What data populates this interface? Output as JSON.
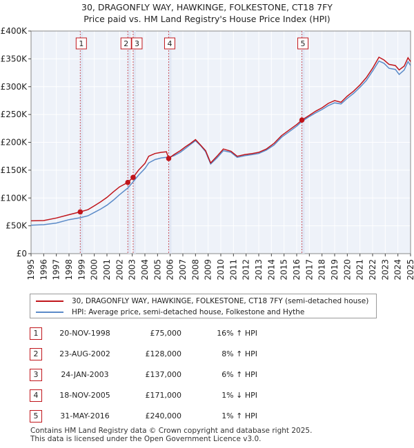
{
  "title_line1": "30, DRAGONFLY WAY, HAWKINGE, FOLKESTONE, CT18 7FY",
  "title_line2": "Price paid vs. HM Land Registry's House Price Index (HPI)",
  "chart_data": {
    "type": "line",
    "title": "30, DRAGONFLY WAY, HAWKINGE, FOLKESTONE, CT18 7FY — Price paid vs. HM Land Registry's House Price Index (HPI)",
    "xlabel": "",
    "ylabel": "",
    "xlim": [
      1995,
      2025
    ],
    "ylim": [
      0,
      400000
    ],
    "x_ticks": [
      "1995",
      "1996",
      "1997",
      "1998",
      "1999",
      "2000",
      "2001",
      "2002",
      "2003",
      "2004",
      "2005",
      "2006",
      "2007",
      "2008",
      "2009",
      "2010",
      "2011",
      "2012",
      "2013",
      "2014",
      "2015",
      "2016",
      "2017",
      "2018",
      "2019",
      "2020",
      "2021",
      "2022",
      "2023",
      "2024",
      "2025"
    ],
    "y_ticks": [
      {
        "value": 0,
        "label": "£0"
      },
      {
        "value": 50000,
        "label": "£50K"
      },
      {
        "value": 100000,
        "label": "£100K"
      },
      {
        "value": 150000,
        "label": "£150K"
      },
      {
        "value": 200000,
        "label": "£200K"
      },
      {
        "value": 250000,
        "label": "£250K"
      },
      {
        "value": 300000,
        "label": "£300K"
      },
      {
        "value": 350000,
        "label": "£350K"
      },
      {
        "value": 400000,
        "label": "£400K"
      }
    ],
    "grid": true,
    "series": [
      {
        "name": "30, DRAGONFLY WAY, HAWKINGE, FOLKESTONE, CT18 7FY (semi-detached house)",
        "color": "#c0141a",
        "points": [
          [
            1995.0,
            59000
          ],
          [
            1996.0,
            59500
          ],
          [
            1997.0,
            64000
          ],
          [
            1998.0,
            70000
          ],
          [
            1998.89,
            75000
          ],
          [
            1999.5,
            79000
          ],
          [
            2000.0,
            86000
          ],
          [
            2000.5,
            93000
          ],
          [
            2001.0,
            101000
          ],
          [
            2001.5,
            111000
          ],
          [
            2002.0,
            120000
          ],
          [
            2002.65,
            128000
          ],
          [
            2003.07,
            137000
          ],
          [
            2003.5,
            150000
          ],
          [
            2004.0,
            162000
          ],
          [
            2004.3,
            175000
          ],
          [
            2004.8,
            180000
          ],
          [
            2005.3,
            182000
          ],
          [
            2005.7,
            183000
          ],
          [
            2005.88,
            171000
          ],
          [
            2006.3,
            178000
          ],
          [
            2006.8,
            185000
          ],
          [
            2007.2,
            192000
          ],
          [
            2007.6,
            198000
          ],
          [
            2008.0,
            205000
          ],
          [
            2008.4,
            195000
          ],
          [
            2008.8,
            185000
          ],
          [
            2009.2,
            163000
          ],
          [
            2009.7,
            175000
          ],
          [
            2010.2,
            188000
          ],
          [
            2010.8,
            184000
          ],
          [
            2011.3,
            175000
          ],
          [
            2011.9,
            178000
          ],
          [
            2012.5,
            180000
          ],
          [
            2013.0,
            182000
          ],
          [
            2013.6,
            188000
          ],
          [
            2014.2,
            198000
          ],
          [
            2014.8,
            212000
          ],
          [
            2015.4,
            222000
          ],
          [
            2016.0,
            232000
          ],
          [
            2016.41,
            240000
          ],
          [
            2016.9,
            247000
          ],
          [
            2017.5,
            256000
          ],
          [
            2018.0,
            262000
          ],
          [
            2018.5,
            270000
          ],
          [
            2019.0,
            275000
          ],
          [
            2019.5,
            272000
          ],
          [
            2020.0,
            283000
          ],
          [
            2020.5,
            292000
          ],
          [
            2021.0,
            303000
          ],
          [
            2021.5,
            316000
          ],
          [
            2022.0,
            333000
          ],
          [
            2022.5,
            353000
          ],
          [
            2022.9,
            348000
          ],
          [
            2023.3,
            340000
          ],
          [
            2023.8,
            338000
          ],
          [
            2024.1,
            330000
          ],
          [
            2024.5,
            337000
          ],
          [
            2024.8,
            352000
          ],
          [
            2025.0,
            345000
          ]
        ]
      },
      {
        "name": "HPI: Average price, semi-detached house, Folkestone and Hythe",
        "color": "#5a8ac8",
        "points": [
          [
            1995.0,
            51000
          ],
          [
            1996.0,
            52000
          ],
          [
            1997.0,
            55000
          ],
          [
            1998.0,
            61000
          ],
          [
            1998.89,
            64500
          ],
          [
            1999.5,
            68000
          ],
          [
            2000.0,
            74000
          ],
          [
            2000.5,
            80000
          ],
          [
            2001.0,
            87000
          ],
          [
            2001.5,
            96000
          ],
          [
            2002.0,
            106000
          ],
          [
            2002.65,
            118000
          ],
          [
            2003.07,
            129000
          ],
          [
            2003.5,
            141000
          ],
          [
            2004.0,
            153000
          ],
          [
            2004.3,
            163000
          ],
          [
            2004.8,
            169000
          ],
          [
            2005.3,
            172000
          ],
          [
            2005.7,
            173000
          ],
          [
            2005.88,
            173000
          ],
          [
            2006.3,
            176000
          ],
          [
            2006.8,
            182000
          ],
          [
            2007.2,
            189000
          ],
          [
            2007.6,
            196000
          ],
          [
            2008.0,
            203000
          ],
          [
            2008.4,
            194000
          ],
          [
            2008.8,
            183000
          ],
          [
            2009.2,
            161000
          ],
          [
            2009.7,
            172000
          ],
          [
            2010.2,
            185000
          ],
          [
            2010.8,
            182000
          ],
          [
            2011.3,
            173000
          ],
          [
            2011.9,
            176000
          ],
          [
            2012.5,
            178000
          ],
          [
            2013.0,
            180000
          ],
          [
            2013.6,
            186000
          ],
          [
            2014.2,
            195000
          ],
          [
            2014.8,
            209000
          ],
          [
            2015.4,
            219000
          ],
          [
            2016.0,
            229000
          ],
          [
            2016.41,
            237500
          ],
          [
            2016.9,
            245000
          ],
          [
            2017.5,
            253000
          ],
          [
            2018.0,
            259000
          ],
          [
            2018.5,
            266000
          ],
          [
            2019.0,
            271000
          ],
          [
            2019.5,
            269000
          ],
          [
            2020.0,
            279000
          ],
          [
            2020.5,
            288000
          ],
          [
            2021.0,
            299000
          ],
          [
            2021.5,
            311000
          ],
          [
            2022.0,
            328000
          ],
          [
            2022.5,
            346000
          ],
          [
            2022.9,
            342000
          ],
          [
            2023.3,
            333000
          ],
          [
            2023.8,
            331000
          ],
          [
            2024.1,
            322000
          ],
          [
            2024.5,
            330000
          ],
          [
            2024.8,
            345000
          ],
          [
            2025.0,
            338000
          ]
        ]
      }
    ],
    "sales": [
      {
        "num": "1",
        "x": 1998.89,
        "price": 75000
      },
      {
        "num": "2",
        "x": 2002.65,
        "price": 128000
      },
      {
        "num": "3",
        "x": 2003.07,
        "price": 137000
      },
      {
        "num": "4",
        "x": 2005.88,
        "price": 171000
      },
      {
        "num": "5",
        "x": 2016.41,
        "price": 240000
      }
    ],
    "legend": [
      "30, DRAGONFLY WAY, HAWKINGE, FOLKESTONE, CT18 7FY (semi-detached house)",
      "HPI: Average price, semi-detached house, Folkestone and Hythe"
    ]
  },
  "legend": {
    "property_label": "30, DRAGONFLY WAY, HAWKINGE, FOLKESTONE, CT18 7FY (semi-detached house)",
    "hpi_label": "HPI: Average price, semi-detached house, Folkestone and Hythe",
    "property_color": "#c0141a",
    "hpi_color": "#5a8ac8"
  },
  "sales_table": [
    {
      "num": "1",
      "date": "20-NOV-1998",
      "price": "£75,000",
      "hpi": "16% ↑ HPI"
    },
    {
      "num": "2",
      "date": "23-AUG-2002",
      "price": "£128,000",
      "hpi": "8% ↑ HPI"
    },
    {
      "num": "3",
      "date": "24-JAN-2003",
      "price": "£137,000",
      "hpi": "6% ↑ HPI"
    },
    {
      "num": "4",
      "date": "18-NOV-2005",
      "price": "£171,000",
      "hpi": "1% ↓ HPI"
    },
    {
      "num": "5",
      "date": "31-MAY-2016",
      "price": "£240,000",
      "hpi": "1% ↑ HPI"
    }
  ],
  "footer": {
    "line1": "Contains HM Land Registry data © Crown copyright and database right 2025.",
    "line2": "This data is licensed under the Open Government Licence v3.0."
  }
}
